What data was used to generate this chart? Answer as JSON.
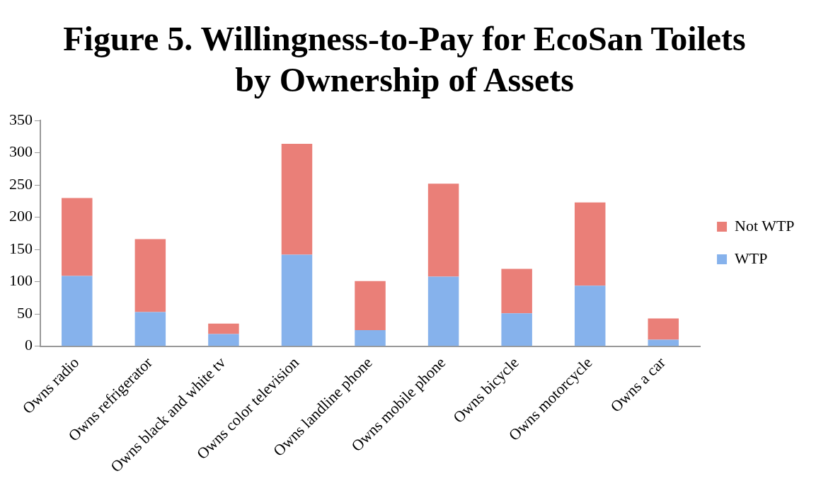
{
  "chart_data": {
    "type": "bar",
    "title": "Figure 5. Willingness-to-Pay for EcoSan Toilets by Ownership of Assets",
    "categories": [
      "Owns radio",
      "Owns refrigerator",
      "Owns black and white tv",
      "Owns color television",
      "Owns landline phone",
      "Owns mobile phone",
      "Owns bicycle",
      "Owns motorcycle",
      "Owns a car"
    ],
    "stacked": true,
    "series": [
      {
        "name": "WTP",
        "color": "#86b2ec",
        "values": [
          109,
          53,
          19,
          142,
          25,
          108,
          51,
          94,
          10
        ]
      },
      {
        "name": "Not WTP",
        "color": "#ea7f78",
        "values": [
          121,
          113,
          16,
          172,
          76,
          144,
          69,
          129,
          33
        ]
      }
    ],
    "ylim": [
      0,
      350
    ],
    "yticks": [
      0,
      50,
      100,
      150,
      200,
      250,
      300,
      350
    ],
    "grid": false,
    "legend": "right"
  }
}
